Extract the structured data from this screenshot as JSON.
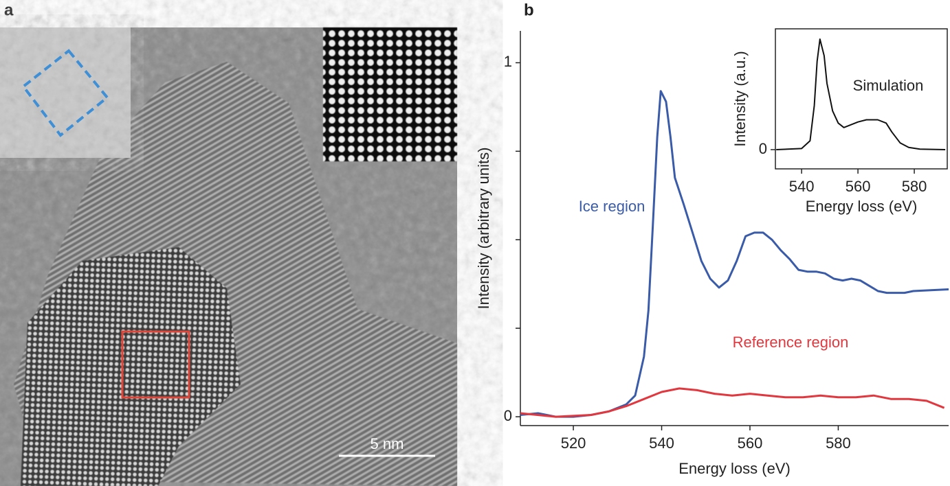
{
  "panel_a": {
    "label": "a",
    "scale_bar": "5 nm"
  },
  "chart_data": [
    {
      "type": "line",
      "panel_label": "b",
      "xlabel": "Energy loss (eV)",
      "ylabel": "Intensity (arbitrary units)",
      "xlim": [
        508,
        605
      ],
      "xticks": [
        520,
        540,
        560,
        580
      ],
      "ylim": [
        -0.025,
        1.09
      ],
      "yticks": [
        0,
        1
      ],
      "yticks_minor": [
        0.25,
        0.5,
        0.75
      ],
      "series": [
        {
          "name": "Ice region",
          "color": "#3a5ba8",
          "x": [
            508,
            512,
            516,
            520,
            524,
            528,
            532,
            534,
            536,
            537,
            538,
            539,
            539.8,
            541,
            542,
            543,
            545,
            547,
            549,
            551,
            553,
            555,
            557,
            559,
            561,
            563,
            565,
            567,
            569,
            571,
            573,
            575,
            577,
            579,
            581,
            583,
            585,
            587,
            589,
            591,
            593,
            595,
            597,
            605
          ],
          "values": [
            0.005,
            0.01,
            0,
            0,
            0.005,
            0.015,
            0.035,
            0.06,
            0.17,
            0.3,
            0.54,
            0.79,
            0.92,
            0.89,
            0.79,
            0.675,
            0.6,
            0.52,
            0.44,
            0.39,
            0.365,
            0.385,
            0.44,
            0.51,
            0.52,
            0.52,
            0.5,
            0.47,
            0.445,
            0.415,
            0.41,
            0.41,
            0.405,
            0.39,
            0.385,
            0.39,
            0.385,
            0.37,
            0.355,
            0.35,
            0.35,
            0.35,
            0.355,
            0.36
          ]
        },
        {
          "name": "Reference region",
          "color": "#e0383e",
          "x": [
            508,
            516,
            524,
            528,
            532,
            536,
            540,
            544,
            548,
            552,
            556,
            560,
            564,
            568,
            572,
            576,
            580,
            584,
            588,
            592,
            596,
            600,
            604
          ],
          "values": [
            0.01,
            0,
            0.005,
            0.015,
            0.03,
            0.05,
            0.07,
            0.08,
            0.075,
            0.065,
            0.06,
            0.065,
            0.06,
            0.055,
            0.055,
            0.06,
            0.055,
            0.055,
            0.06,
            0.05,
            0.05,
            0.045,
            0.025
          ]
        }
      ]
    },
    {
      "type": "line",
      "xlabel": "Energy loss (eV)",
      "ylabel": "Intensity (a.u.)",
      "xlim": [
        530.7,
        591.7
      ],
      "xticks": [
        540,
        560,
        580
      ],
      "ylim": [
        -0.174,
        1.093
      ],
      "yticks": [
        0
      ],
      "series": [
        {
          "name": "Simulation",
          "color": "#111111",
          "x": [
            531,
            540,
            543,
            544.5,
            545.5,
            546.5,
            548,
            549,
            551,
            553,
            555,
            557,
            560,
            563,
            567,
            570,
            572,
            575,
            578,
            582,
            591
          ],
          "values": [
            0,
            0.01,
            0.08,
            0.4,
            0.8,
            1.0,
            0.85,
            0.6,
            0.35,
            0.24,
            0.2,
            0.22,
            0.25,
            0.27,
            0.27,
            0.24,
            0.16,
            0.06,
            0.02,
            0.005,
            0
          ]
        }
      ]
    }
  ]
}
